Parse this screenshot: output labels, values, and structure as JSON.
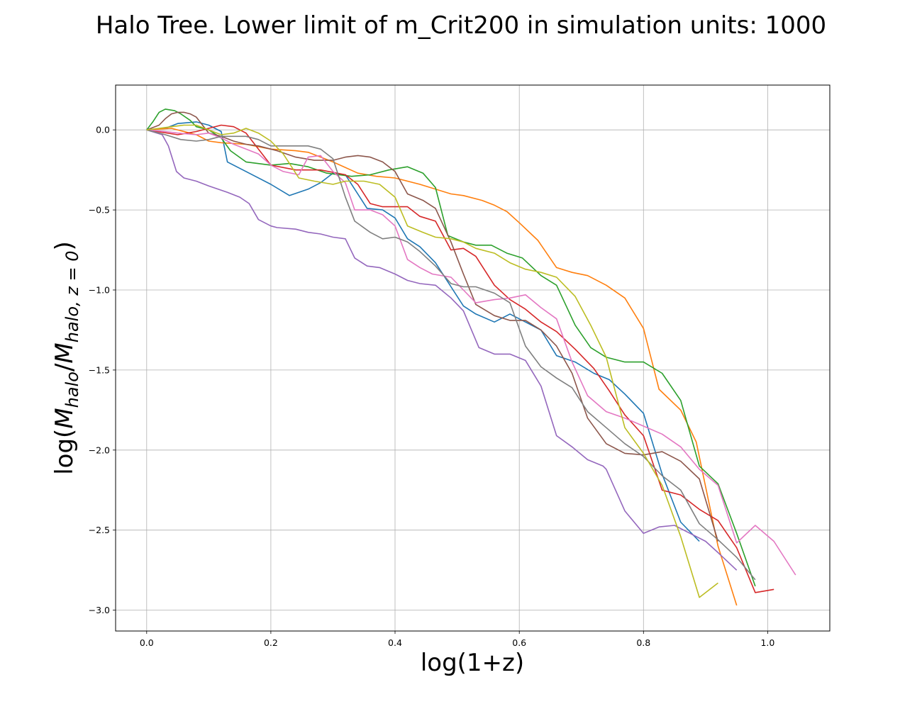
{
  "chart_data": {
    "type": "line",
    "title": "Halo Tree. Lower limit of m_Crit200 in simulation units: 1000",
    "xlabel": "log(1+z)",
    "ylabel_parts": {
      "prefix": "log(",
      "m1": "M",
      "s1": "halo",
      "slash": "/",
      "m2": "M",
      "s2": "halo, z = 0",
      "suffix": ")"
    },
    "xlim": [
      -0.05,
      1.1
    ],
    "ylim": [
      -3.13,
      0.28
    ],
    "xticks": [
      0.0,
      0.2,
      0.4,
      0.6,
      0.8,
      1.0
    ],
    "xtick_labels": [
      "0.0",
      "0.2",
      "0.4",
      "0.6",
      "0.8",
      "1.0"
    ],
    "yticks": [
      0.0,
      -0.5,
      -1.0,
      -1.5,
      -2.0,
      -2.5,
      -3.0
    ],
    "ytick_labels": [
      "0.0",
      "−0.5",
      "−1.0",
      "−1.5",
      "−2.0",
      "−2.5",
      "−3.0"
    ],
    "grid": true,
    "series": [
      {
        "color": "#1f77b4",
        "x": [
          0,
          0.03,
          0.05,
          0.08,
          0.1,
          0.12,
          0.13,
          0.16,
          0.2,
          0.23,
          0.26,
          0.28,
          0.3,
          0.32,
          0.355,
          0.38,
          0.4,
          0.42,
          0.44,
          0.465,
          0.49,
          0.51,
          0.53,
          0.56,
          0.585,
          0.61,
          0.635,
          0.66,
          0.69,
          0.72,
          0.745,
          0.77,
          0.8,
          0.83,
          0.86,
          0.89
        ],
        "y": [
          0,
          0.01,
          0.04,
          0.05,
          0.03,
          -0.01,
          -0.2,
          -0.26,
          -0.34,
          -0.41,
          -0.37,
          -0.33,
          -0.27,
          -0.28,
          -0.49,
          -0.5,
          -0.55,
          -0.68,
          -0.73,
          -0.83,
          -0.98,
          -1.1,
          -1.15,
          -1.2,
          -1.15,
          -1.2,
          -1.25,
          -1.41,
          -1.45,
          -1.52,
          -1.56,
          -1.65,
          -1.77,
          -2.15,
          -2.45,
          -2.57
        ]
      },
      {
        "color": "#ff7f0e",
        "x": [
          0,
          0.04,
          0.08,
          0.1,
          0.12,
          0.16,
          0.2,
          0.24,
          0.26,
          0.3,
          0.34,
          0.37,
          0.4,
          0.44,
          0.49,
          0.51,
          0.54,
          0.56,
          0.58,
          0.6,
          0.63,
          0.66,
          0.685,
          0.71,
          0.74,
          0.77,
          0.8,
          0.825,
          0.86,
          0.885,
          0.92,
          0.95
        ],
        "y": [
          0,
          0.01,
          -0.03,
          -0.07,
          -0.08,
          -0.09,
          -0.12,
          -0.13,
          -0.14,
          -0.2,
          -0.27,
          -0.29,
          -0.3,
          -0.34,
          -0.4,
          -0.41,
          -0.44,
          -0.47,
          -0.51,
          -0.58,
          -0.69,
          -0.86,
          -0.89,
          -0.91,
          -0.97,
          -1.05,
          -1.24,
          -1.62,
          -1.75,
          -1.95,
          -2.6,
          -2.97
        ]
      },
      {
        "color": "#2ca02c",
        "x": [
          0,
          0.01,
          0.02,
          0.03,
          0.045,
          0.055,
          0.07,
          0.08,
          0.1,
          0.12,
          0.135,
          0.16,
          0.2,
          0.23,
          0.26,
          0.29,
          0.33,
          0.36,
          0.39,
          0.42,
          0.445,
          0.465,
          0.485,
          0.51,
          0.53,
          0.555,
          0.58,
          0.605,
          0.635,
          0.66,
          0.69,
          0.715,
          0.74,
          0.77,
          0.8,
          0.83,
          0.86,
          0.89,
          0.92,
          0.95,
          0.98
        ],
        "y": [
          0,
          0.05,
          0.11,
          0.13,
          0.12,
          0.1,
          0.06,
          0.02,
          0,
          -0.05,
          -0.13,
          -0.2,
          -0.22,
          -0.21,
          -0.23,
          -0.27,
          -0.29,
          -0.28,
          -0.25,
          -0.23,
          -0.27,
          -0.36,
          -0.66,
          -0.7,
          -0.72,
          -0.72,
          -0.77,
          -0.8,
          -0.91,
          -0.97,
          -1.22,
          -1.36,
          -1.42,
          -1.45,
          -1.45,
          -1.52,
          -1.69,
          -2.1,
          -2.21,
          -2.52,
          -2.85
        ]
      },
      {
        "color": "#d62728",
        "x": [
          0,
          0.05,
          0.08,
          0.1,
          0.12,
          0.14,
          0.16,
          0.2,
          0.24,
          0.28,
          0.32,
          0.34,
          0.36,
          0.38,
          0.42,
          0.44,
          0.465,
          0.49,
          0.51,
          0.53,
          0.56,
          0.585,
          0.61,
          0.635,
          0.66,
          0.69,
          0.72,
          0.745,
          0.77,
          0.8,
          0.83,
          0.86,
          0.89,
          0.92,
          0.95,
          0.98,
          1.01
        ],
        "y": [
          0,
          -0.03,
          -0.01,
          0.01,
          0.03,
          0.02,
          -0.02,
          -0.22,
          -0.25,
          -0.25,
          -0.28,
          -0.34,
          -0.46,
          -0.48,
          -0.48,
          -0.54,
          -0.57,
          -0.75,
          -0.74,
          -0.79,
          -0.97,
          -1.06,
          -1.12,
          -1.2,
          -1.26,
          -1.37,
          -1.49,
          -1.63,
          -1.78,
          -1.91,
          -2.25,
          -2.28,
          -2.37,
          -2.44,
          -2.61,
          -2.89,
          -2.87
        ]
      },
      {
        "color": "#9467bd",
        "x": [
          0,
          0.025,
          0.035,
          0.048,
          0.06,
          0.08,
          0.1,
          0.13,
          0.15,
          0.165,
          0.18,
          0.2,
          0.21,
          0.24,
          0.26,
          0.28,
          0.3,
          0.32,
          0.335,
          0.355,
          0.375,
          0.4,
          0.42,
          0.44,
          0.465,
          0.49,
          0.51,
          0.535,
          0.56,
          0.585,
          0.61,
          0.635,
          0.66,
          0.685,
          0.71,
          0.735,
          0.74,
          0.77,
          0.8,
          0.825,
          0.85,
          0.875,
          0.9,
          0.92,
          0.95
        ],
        "y": [
          0,
          -0.03,
          -0.1,
          -0.26,
          -0.3,
          -0.32,
          -0.35,
          -0.39,
          -0.42,
          -0.46,
          -0.56,
          -0.6,
          -0.61,
          -0.62,
          -0.64,
          -0.65,
          -0.67,
          -0.68,
          -0.8,
          -0.85,
          -0.86,
          -0.9,
          -0.94,
          -0.96,
          -0.97,
          -1.05,
          -1.13,
          -1.36,
          -1.4,
          -1.4,
          -1.44,
          -1.6,
          -1.91,
          -1.98,
          -2.06,
          -2.1,
          -2.12,
          -2.38,
          -2.52,
          -2.48,
          -2.47,
          -2.52,
          -2.57,
          -2.64,
          -2.75
        ]
      },
      {
        "color": "#8c564b",
        "x": [
          0,
          0.02,
          0.03,
          0.04,
          0.05,
          0.06,
          0.07,
          0.08,
          0.1,
          0.12,
          0.14,
          0.16,
          0.18,
          0.21,
          0.24,
          0.27,
          0.3,
          0.32,
          0.34,
          0.36,
          0.38,
          0.4,
          0.42,
          0.445,
          0.465,
          0.49,
          0.51,
          0.53,
          0.56,
          0.585,
          0.61,
          0.635,
          0.66,
          0.685,
          0.71,
          0.74,
          0.77,
          0.8,
          0.83,
          0.86,
          0.89,
          0.92
        ],
        "y": [
          0,
          0.03,
          0.07,
          0.1,
          0.11,
          0.11,
          0.1,
          0.08,
          -0.02,
          -0.04,
          -0.07,
          -0.09,
          -0.1,
          -0.13,
          -0.17,
          -0.19,
          -0.19,
          -0.17,
          -0.16,
          -0.17,
          -0.2,
          -0.26,
          -0.4,
          -0.44,
          -0.49,
          -0.7,
          -0.9,
          -1.09,
          -1.16,
          -1.19,
          -1.19,
          -1.25,
          -1.35,
          -1.52,
          -1.8,
          -1.96,
          -2.02,
          -2.03,
          -2.01,
          -2.07,
          -2.18,
          -2.57
        ]
      },
      {
        "color": "#e377c2",
        "x": [
          0,
          0.03,
          0.05,
          0.08,
          0.1,
          0.12,
          0.14,
          0.16,
          0.18,
          0.2,
          0.22,
          0.245,
          0.26,
          0.28,
          0.3,
          0.32,
          0.335,
          0.36,
          0.38,
          0.4,
          0.42,
          0.44,
          0.46,
          0.49,
          0.51,
          0.53,
          0.56,
          0.585,
          0.61,
          0.635,
          0.66,
          0.685,
          0.71,
          0.74,
          0.77,
          0.8,
          0.83,
          0.86,
          0.89,
          0.92,
          0.95,
          0.98,
          1.01,
          1.045
        ],
        "y": [
          0,
          -0.01,
          -0.02,
          -0.03,
          -0.02,
          -0.05,
          -0.09,
          -0.12,
          -0.15,
          -0.22,
          -0.26,
          -0.28,
          -0.17,
          -0.16,
          -0.26,
          -0.33,
          -0.5,
          -0.5,
          -0.53,
          -0.6,
          -0.81,
          -0.86,
          -0.9,
          -0.92,
          -1.0,
          -1.08,
          -1.06,
          -1.05,
          -1.03,
          -1.11,
          -1.18,
          -1.45,
          -1.66,
          -1.76,
          -1.8,
          -1.85,
          -1.9,
          -1.98,
          -2.12,
          -2.22,
          -2.58,
          -2.47,
          -2.57,
          -2.78
        ]
      },
      {
        "color": "#7f7f7f",
        "x": [
          0,
          0.03,
          0.055,
          0.08,
          0.1,
          0.12,
          0.14,
          0.16,
          0.18,
          0.2,
          0.22,
          0.24,
          0.26,
          0.28,
          0.3,
          0.32,
          0.335,
          0.36,
          0.38,
          0.4,
          0.42,
          0.44,
          0.465,
          0.49,
          0.51,
          0.53,
          0.56,
          0.585,
          0.61,
          0.635,
          0.66,
          0.685,
          0.71,
          0.74,
          0.77,
          0.8,
          0.83,
          0.86,
          0.89,
          0.92,
          0.95,
          0.98
        ],
        "y": [
          0,
          -0.03,
          -0.06,
          -0.07,
          -0.06,
          -0.04,
          -0.04,
          -0.04,
          -0.06,
          -0.1,
          -0.1,
          -0.1,
          -0.1,
          -0.12,
          -0.18,
          -0.42,
          -0.57,
          -0.64,
          -0.68,
          -0.67,
          -0.7,
          -0.76,
          -0.85,
          -0.96,
          -0.98,
          -0.98,
          -1.02,
          -1.08,
          -1.35,
          -1.48,
          -1.55,
          -1.61,
          -1.76,
          -1.86,
          -1.96,
          -2.04,
          -2.16,
          -2.25,
          -2.46,
          -2.56,
          -2.67,
          -2.81
        ]
      },
      {
        "color": "#bcbd22",
        "x": [
          0,
          0.02,
          0.04,
          0.06,
          0.08,
          0.1,
          0.12,
          0.14,
          0.16,
          0.18,
          0.2,
          0.22,
          0.245,
          0.27,
          0.3,
          0.32,
          0.35,
          0.375,
          0.4,
          0.42,
          0.445,
          0.465,
          0.49,
          0.51,
          0.53,
          0.56,
          0.585,
          0.61,
          0.635,
          0.66,
          0.69,
          0.715,
          0.74,
          0.77,
          0.8,
          0.83,
          0.86,
          0.89,
          0.92
        ],
        "y": [
          0,
          0.01,
          0.02,
          0.03,
          0.03,
          0.0,
          -0.03,
          -0.02,
          0.01,
          -0.02,
          -0.07,
          -0.15,
          -0.3,
          -0.32,
          -0.34,
          -0.32,
          -0.32,
          -0.34,
          -0.42,
          -0.6,
          -0.64,
          -0.67,
          -0.68,
          -0.7,
          -0.74,
          -0.77,
          -0.83,
          -0.87,
          -0.89,
          -0.92,
          -1.04,
          -1.22,
          -1.42,
          -1.86,
          -2.02,
          -2.22,
          -2.54,
          -2.92,
          -2.83
        ]
      }
    ]
  }
}
